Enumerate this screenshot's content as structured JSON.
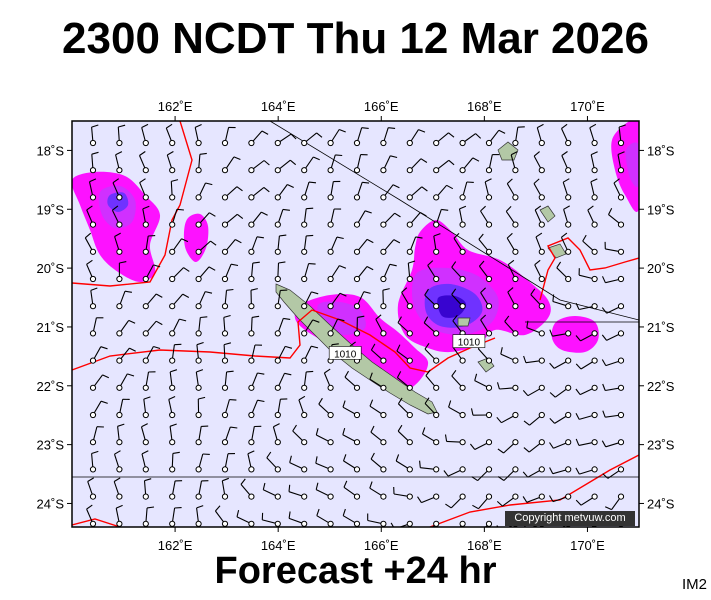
{
  "title": "2300 NCDT Thu 12 Mar 2026",
  "footer": "Forecast +24 hr",
  "image_code": "IM2",
  "copyright": "Copyright metvuw.com",
  "map": {
    "lon_range": [
      160.0,
      171.0
    ],
    "lat_range": [
      -24.4,
      -17.5
    ],
    "lon_ticks": [
      162,
      164,
      166,
      168,
      170
    ],
    "lat_ticks": [
      -18,
      -19,
      -20,
      -21,
      -22,
      -23,
      -24
    ],
    "lon_tick_labels": [
      "162˚E",
      "164˚E",
      "166˚E",
      "168˚E",
      "170˚E"
    ],
    "lat_tick_labels": [
      "18˚S",
      "19˚S",
      "20˚S",
      "21˚S",
      "22˚S",
      "23˚S",
      "24˚S"
    ],
    "colors": {
      "ocean": "#e6e6ff",
      "rain_light": "#ff00ff",
      "rain_medium": "#cc33ff",
      "rain_heavy": "#6633ff",
      "rain_max": "#3300cc",
      "isobar": "#ff0000",
      "land": "#b3c8a6",
      "wind_barb": "#000000"
    },
    "isobar_labels": [
      {
        "text": "1010",
        "lon": 165.3,
        "lat": -21.45
      },
      {
        "text": "1010",
        "lon": 167.7,
        "lat": -21.25
      }
    ]
  }
}
